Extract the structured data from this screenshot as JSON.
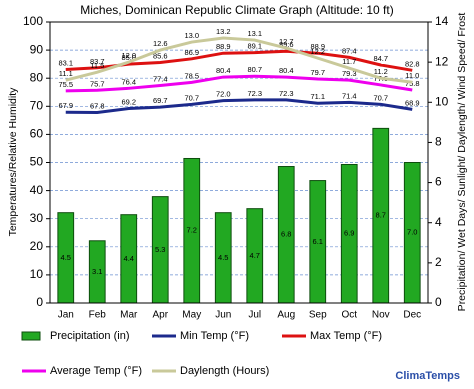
{
  "chart_data": {
    "type": "combo",
    "title": "Miches, Dominican Republic Climate Graph (Altitude: 10 ft)",
    "y_label": "Temperatures/Relative Humidity",
    "y2_label": "Precipitation/ Wet Days/ Sunlight/ Daylength/ Wind Speed/ Frost",
    "categories": [
      "Jan",
      "Feb",
      "Mar",
      "Apr",
      "May",
      "Jun",
      "Jul",
      "Aug",
      "Sep",
      "Oct",
      "Nov",
      "Dec"
    ],
    "ylim": [
      0,
      100
    ],
    "yticks": [
      0,
      10,
      20,
      30,
      40,
      50,
      60,
      70,
      80,
      90,
      100
    ],
    "y2lim": [
      0,
      14
    ],
    "y2ticks": [
      0,
      2,
      4,
      6,
      8,
      10,
      12,
      14
    ],
    "grid": true,
    "brand": "ClimaTemps",
    "series": [
      {
        "name": "Precipitation (in)",
        "type": "bar",
        "axis": "y2",
        "color": "#22a822",
        "values": [
          4.5,
          3.1,
          4.4,
          5.3,
          7.2,
          4.5,
          4.7,
          6.8,
          6.1,
          6.9,
          8.7,
          7.0
        ],
        "value_labels": [
          "4.5",
          "3.1",
          "4.4",
          "5.3",
          "7.2",
          "4.5",
          "4.7",
          "6.8",
          "6.1",
          "6.9",
          "8.7",
          "7.0"
        ]
      },
      {
        "name": "Min Temp (°F)",
        "type": "line",
        "color": "#1c2a8c",
        "values": [
          67.9,
          67.8,
          69.2,
          69.7,
          70.7,
          72.0,
          72.3,
          72.3,
          71.1,
          71.4,
          70.7,
          68.9
        ],
        "value_labels": [
          "67.9",
          "67.8",
          "69.2",
          "69.7",
          "70.7",
          "72.0",
          "72.3",
          "72.3",
          "71.1",
          "71.4",
          "70.7",
          "68.9"
        ]
      },
      {
        "name": "Max Temp (°F)",
        "type": "line",
        "color": "#dd1111",
        "values": [
          83.1,
          83.7,
          85.0,
          85.6,
          86.9,
          88.9,
          89.1,
          89.6,
          88.9,
          87.4,
          84.7,
          82.8
        ],
        "value_labels": [
          "83.1",
          "83.7",
          "85.0",
          "85.6",
          "86.9",
          "88.9",
          "89.1",
          "89.6",
          "88.9",
          "87.4",
          "84.7",
          "82.8"
        ]
      },
      {
        "name": "Average Temp (°F)",
        "type": "line",
        "color": "#ee00ee",
        "values": [
          75.5,
          75.7,
          76.4,
          77.4,
          78.5,
          80.4,
          80.7,
          80.4,
          79.7,
          79.3,
          77.6,
          75.8
        ],
        "value_labels": [
          "75.5",
          "75.7",
          "76.4",
          "77.4",
          "78.5",
          "80.4",
          "80.7",
          "80.4",
          "79.7",
          "79.3",
          "77.6",
          "75.8"
        ]
      },
      {
        "name": "Daylength (Hours)",
        "type": "line",
        "axis": "y2",
        "color": "#c9c99a",
        "values": [
          11.1,
          11.5,
          12.0,
          12.6,
          13.0,
          13.2,
          13.1,
          12.7,
          12.2,
          11.7,
          11.2,
          11.0
        ],
        "value_labels": [
          "11.1",
          "11.5",
          "12.0",
          "12.6",
          "13.0",
          "13.2",
          "13.1",
          "12.7",
          "12.2",
          "11.7",
          "11.2",
          "11.0"
        ]
      }
    ]
  }
}
